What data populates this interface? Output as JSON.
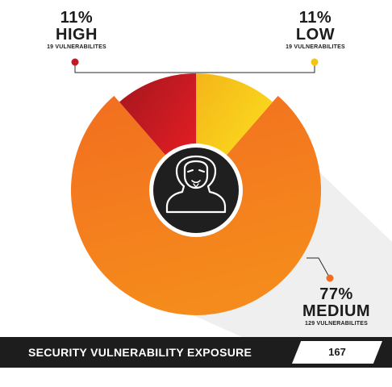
{
  "chart_data": {
    "type": "pie",
    "title": "SECURITY VULNERABILITY EXPOSURE",
    "total": "167",
    "slices": [
      {
        "level": "HIGH",
        "percent_label": "11%",
        "count_label": "19 VULNERABILITES",
        "value": 19,
        "color": "#d21b24"
      },
      {
        "level": "LOW",
        "percent_label": "11%",
        "count_label": "19 VULNERABILITES",
        "value": 19,
        "color": "#f7c91b"
      },
      {
        "level": "MEDIUM",
        "percent_label": "77%",
        "count_label": "129 VULNERABILITES",
        "value": 129,
        "color": "#f06d1f"
      }
    ]
  },
  "colors": {
    "high_dot": "#c01a22",
    "low_dot": "#f3c512",
    "medium_dot": "#f06d1f",
    "bar_bg": "#1d1d1d",
    "center_bg": "#1f1f1f"
  },
  "icons": {
    "center": "anonymous-hacker-icon"
  }
}
